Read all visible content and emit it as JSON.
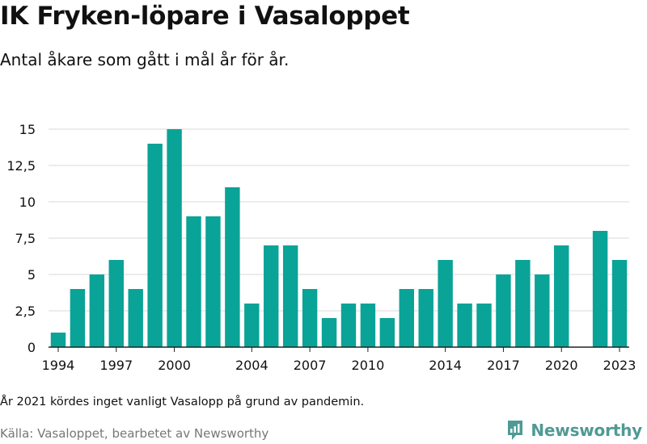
{
  "title": "IK Fryken-löpare i Vasaloppet",
  "subtitle": "Antal åkare som gått i mål år för år.",
  "note": "År 2021 kördes inget vanligt Vasalopp på grund av pandemin.",
  "source": "Källa: Vasaloppet, bearbetet av Newsworthy",
  "brand": {
    "name": "Newsworthy",
    "icon": "newsworthy-logo-icon"
  },
  "colors": {
    "bar": "#0aa398",
    "grid": "#d9d9d9",
    "axis": "#222222",
    "brand": "#4f9a94"
  },
  "chart_data": {
    "type": "bar",
    "title": "IK Fryken-löpare i Vasaloppet",
    "xlabel": "",
    "ylabel": "",
    "categories": [
      1994,
      1995,
      1996,
      1997,
      1998,
      1999,
      2000,
      2001,
      2002,
      2003,
      2004,
      2005,
      2006,
      2007,
      2008,
      2009,
      2010,
      2011,
      2012,
      2013,
      2014,
      2015,
      2016,
      2017,
      2018,
      2019,
      2020,
      2021,
      2022,
      2023
    ],
    "values": [
      1,
      4,
      5,
      6,
      4,
      14,
      15,
      9,
      9,
      11,
      3,
      7,
      7,
      4,
      2,
      3,
      3,
      2,
      4,
      4,
      6,
      3,
      3,
      5,
      6,
      5,
      7,
      null,
      8,
      6
    ],
    "x_tick_labels": [
      "1994",
      "1997",
      "2000",
      "2004",
      "2007",
      "2010",
      "2014",
      "2017",
      "2020",
      "2023"
    ],
    "y_ticks": [
      0,
      2.5,
      5,
      7.5,
      10,
      12.5,
      15
    ],
    "y_tick_labels": [
      "0",
      "2,5",
      "5",
      "7,5",
      "10",
      "12,5",
      "15"
    ],
    "ylim": [
      0,
      15
    ],
    "grid": true,
    "legend": "none"
  }
}
